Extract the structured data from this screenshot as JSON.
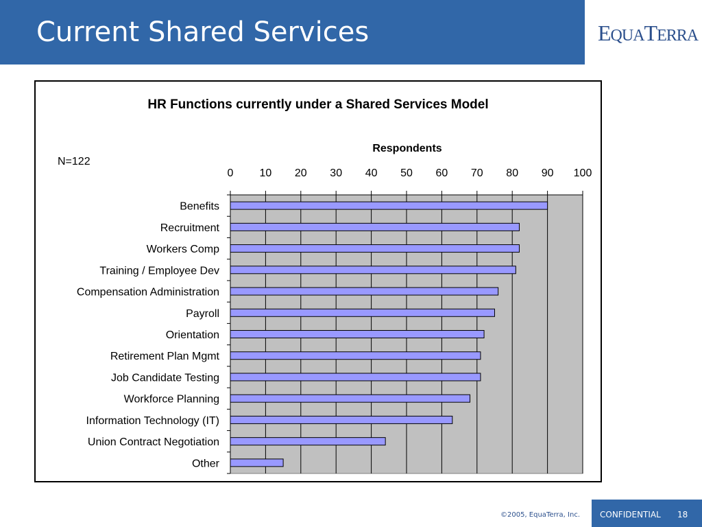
{
  "slide": {
    "title": "Current Shared Services",
    "logo": "EquaTerra",
    "footer_copyright": "©2005, EquaTerra, Inc.",
    "footer_confidential": "CONFIDENTIAL",
    "page_number": "18",
    "n_label": "N=122",
    "colors": {
      "header": "#3167a8",
      "bar_fill": "#9999ff",
      "plot_bg": "#c0c0c0"
    }
  },
  "chart_data": {
    "type": "bar",
    "orientation": "horizontal",
    "title": "HR Functions currently under a Shared Services Model",
    "xlabel": "Respondents",
    "ylabel": "",
    "xlim": [
      0,
      100
    ],
    "ticks": [
      "0",
      "10",
      "20",
      "30",
      "40",
      "50",
      "60",
      "70",
      "80",
      "90",
      "100"
    ],
    "grid": true,
    "categories": [
      "Benefits",
      "Recruitment",
      "Workers Comp",
      "Training / Employee Dev",
      "Compensation Administration",
      "Payroll",
      "Orientation",
      "Retirement Plan Mgmt",
      "Job Candidate Testing",
      "Workforce Planning",
      "Information Technology (IT)",
      "Union Contract Negotiation",
      "Other"
    ],
    "values": [
      90,
      82,
      82,
      81,
      76,
      75,
      72,
      71,
      71,
      68,
      63,
      44,
      15
    ]
  }
}
